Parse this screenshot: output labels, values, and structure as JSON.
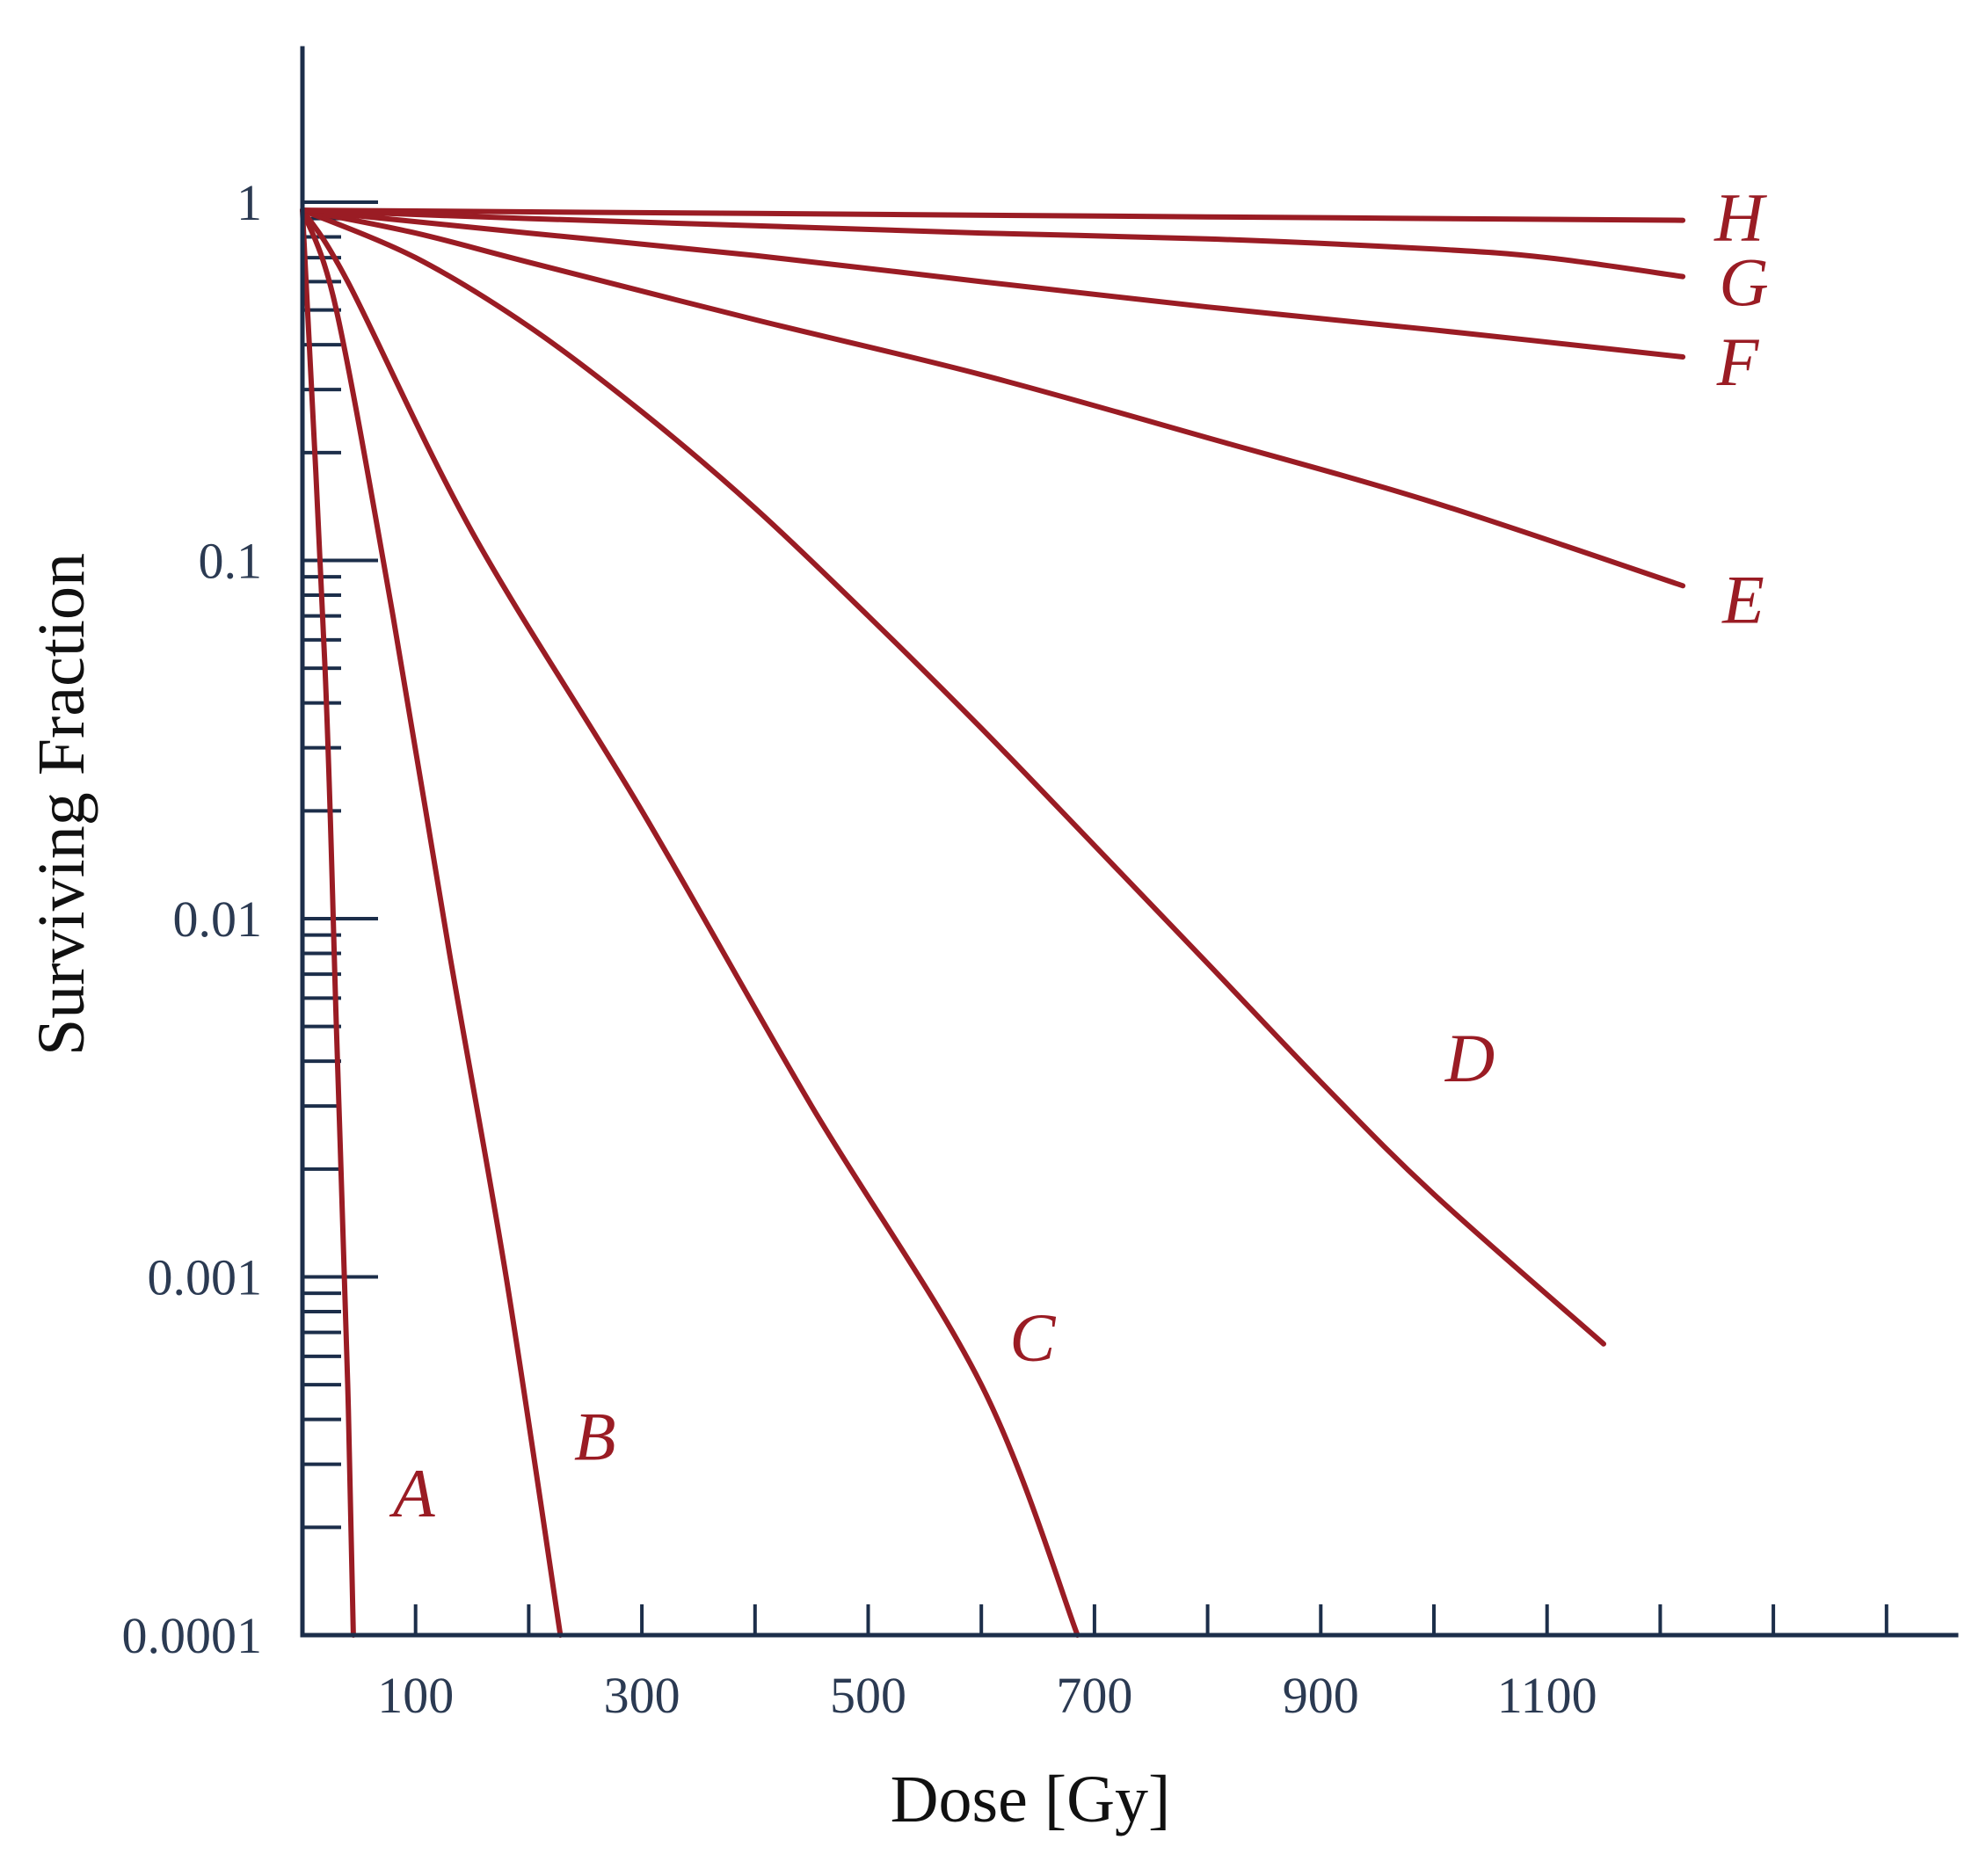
{
  "chart_data": {
    "type": "line",
    "title": "",
    "xlabel": "Dose [Gy]",
    "ylabel": "Surviving Fraction",
    "xlim": [
      0,
      1500
    ],
    "ylim": [
      0.0001,
      3
    ],
    "y_scale": "log",
    "grid": false,
    "x_ticks": [
      100,
      200,
      300,
      400,
      500,
      600,
      700,
      800,
      900,
      1000,
      1100,
      1200,
      1300,
      1400
    ],
    "x_tick_labels": [
      {
        "value": 100,
        "label": "100"
      },
      {
        "value": 300,
        "label": "300"
      },
      {
        "value": 500,
        "label": "500"
      },
      {
        "value": 700,
        "label": "700"
      },
      {
        "value": 900,
        "label": "900"
      },
      {
        "value": 1100,
        "label": "1100"
      }
    ],
    "y_major_ticks": [
      {
        "value": 1,
        "label": "1"
      },
      {
        "value": 0.1,
        "label": "0.1"
      },
      {
        "value": 0.01,
        "label": "0.01"
      },
      {
        "value": 0.001,
        "label": "0.001"
      },
      {
        "value": 0.0001,
        "label": "0.0001"
      }
    ],
    "series": [
      {
        "name": "A",
        "points": [
          [
            0,
            0.95
          ],
          [
            20,
            0.05
          ],
          [
            30,
            0.005
          ],
          [
            40,
            0.0005
          ],
          [
            45,
            0.0001
          ]
        ],
        "label_at": [
          80,
          0.00025
        ]
      },
      {
        "name": "B",
        "points": [
          [
            0,
            0.95
          ],
          [
            30,
            0.5
          ],
          [
            80,
            0.07
          ],
          [
            130,
            0.008
          ],
          [
            180,
            0.001
          ],
          [
            228,
            0.0001
          ]
        ],
        "label_at": [
          240,
          0.00036
        ]
      },
      {
        "name": "C",
        "points": [
          [
            0,
            0.95
          ],
          [
            40,
            0.6
          ],
          [
            150,
            0.12
          ],
          [
            300,
            0.02
          ],
          [
            450,
            0.003
          ],
          [
            600,
            0.0005
          ],
          [
            685,
            0.0001
          ]
        ],
        "label_at": [
          625,
          0.00068
        ]
      },
      {
        "name": "D",
        "points": [
          [
            0,
            0.95
          ],
          [
            100,
            0.7
          ],
          [
            200,
            0.45
          ],
          [
            300,
            0.26
          ],
          [
            400,
            0.14
          ],
          [
            500,
            0.07
          ],
          [
            600,
            0.034
          ],
          [
            700,
            0.016
          ],
          [
            800,
            0.0075
          ],
          [
            900,
            0.0035
          ],
          [
            1000,
            0.0017
          ],
          [
            1150,
            0.00065
          ]
        ],
        "label_at": [
          1010,
          0.0041
        ]
      },
      {
        "name": "E",
        "points": [
          [
            0,
            0.95
          ],
          [
            100,
            0.82
          ],
          [
            200,
            0.68
          ],
          [
            400,
            0.47
          ],
          [
            600,
            0.33
          ],
          [
            800,
            0.22
          ],
          [
            1000,
            0.145
          ],
          [
            1220,
            0.085
          ]
        ],
        "label_at": [
          1255,
          0.078
        ]
      },
      {
        "name": "F",
        "points": [
          [
            0,
            0.95
          ],
          [
            200,
            0.82
          ],
          [
            400,
            0.71
          ],
          [
            600,
            0.6
          ],
          [
            800,
            0.51
          ],
          [
            1000,
            0.44
          ],
          [
            1220,
            0.37
          ]
        ],
        "label_at": [
          1250,
          0.36
        ]
      },
      {
        "name": "G",
        "points": [
          [
            0,
            0.95
          ],
          [
            200,
            0.9
          ],
          [
            400,
            0.86
          ],
          [
            600,
            0.82
          ],
          [
            800,
            0.79
          ],
          [
            1000,
            0.74
          ],
          [
            1100,
            0.7
          ],
          [
            1220,
            0.62
          ]
        ],
        "label_at": [
          1252,
          0.6
        ]
      },
      {
        "name": "H",
        "points": [
          [
            0,
            0.95
          ],
          [
            400,
            0.93
          ],
          [
            800,
            0.91
          ],
          [
            1220,
            0.89
          ]
        ],
        "label_at": [
          1248,
          0.91
        ]
      }
    ],
    "colors": {
      "axis": "#1c2e4a",
      "curve": "#9a1c24",
      "tick_label": "#2b3a52",
      "axis_title": "#111111"
    }
  }
}
